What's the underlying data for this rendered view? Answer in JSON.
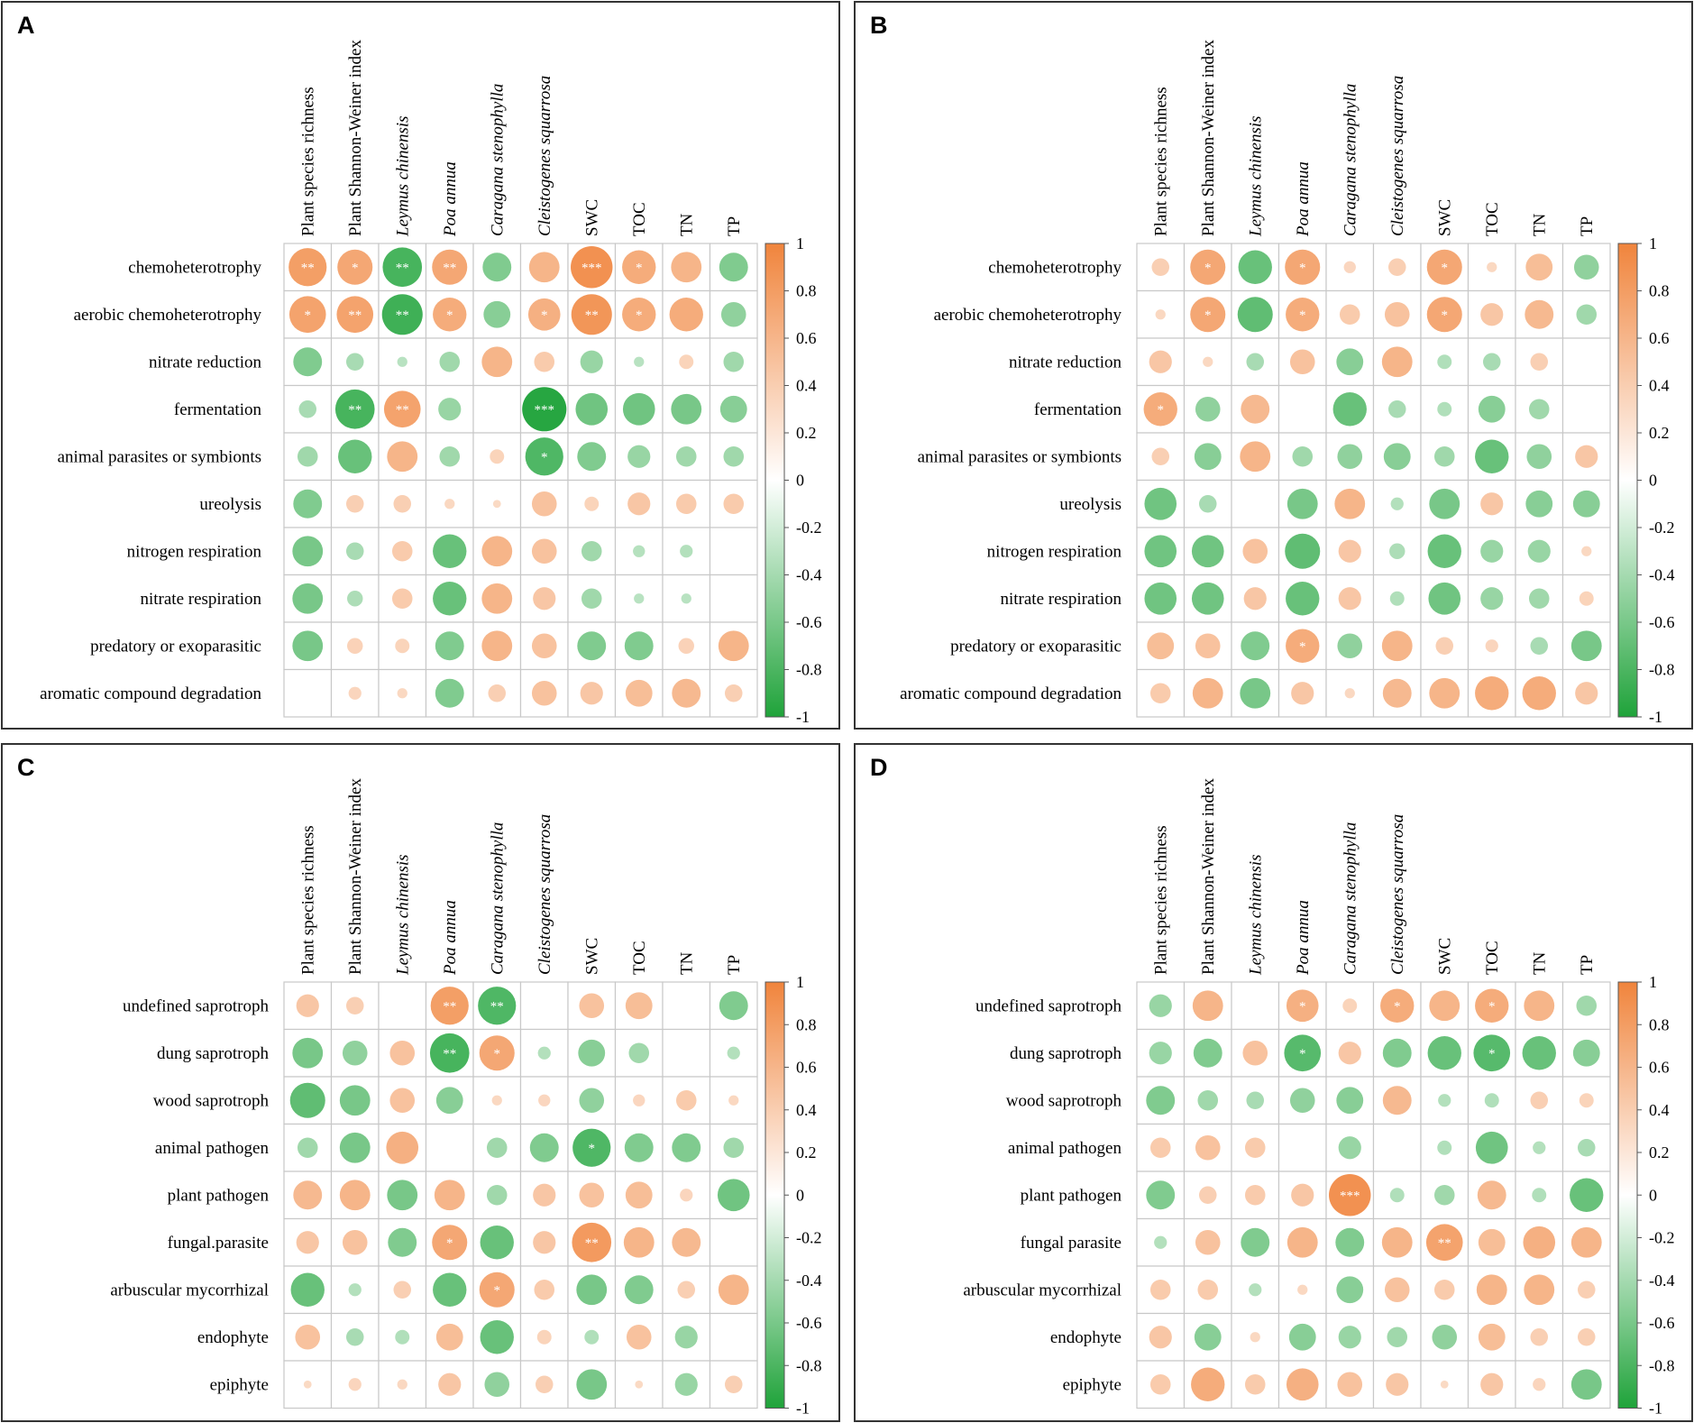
{
  "colors": {
    "positive": "#F0843C",
    "negative": "#1FA33A",
    "grid": "#C8C8C8",
    "border": "#333333"
  },
  "chart_data": [
    {
      "type": "heatmap",
      "panel": "A",
      "columns": [
        "Plant species richness",
        "Plant Shannon-Weiner index",
        "Leymus chinensis",
        "Poa annua",
        "Caragana stenophylla",
        "Cleistogenes squarrosa",
        "SWC",
        "TOC",
        "TN",
        "TP"
      ],
      "italic_columns": [
        2,
        3,
        4,
        5
      ],
      "rows": [
        "chemoheterotrophy",
        "aerobic chemoheterotrophy",
        "nitrate reduction",
        "fermentation",
        "animal parasites or symbionts",
        "ureolysis",
        "nitrogen respiration",
        "nitrate respiration",
        "predatory or exoparasitic",
        "aromatic compound degradation"
      ],
      "values": [
        [
          0.7,
          0.6,
          -0.75,
          0.6,
          -0.4,
          0.45,
          0.85,
          0.55,
          0.45,
          -0.4
        ],
        [
          0.65,
          0.65,
          -0.8,
          0.55,
          -0.35,
          0.5,
          0.8,
          0.55,
          0.55,
          -0.3
        ],
        [
          -0.4,
          -0.15,
          -0.05,
          -0.2,
          0.45,
          0.2,
          -0.25,
          -0.05,
          0.1,
          -0.2
        ],
        [
          -0.15,
          -0.75,
          0.65,
          -0.25,
          0.0,
          -0.95,
          -0.5,
          -0.5,
          -0.45,
          -0.35
        ],
        [
          -0.2,
          -0.55,
          0.45,
          -0.2,
          0.1,
          -0.7,
          -0.4,
          -0.25,
          -0.2,
          -0.2
        ],
        [
          -0.4,
          0.15,
          0.15,
          0.05,
          0.03,
          0.3,
          0.1,
          0.25,
          0.2,
          0.2
        ],
        [
          -0.45,
          -0.15,
          0.2,
          -0.55,
          0.45,
          0.3,
          -0.2,
          -0.07,
          -0.08,
          0.0
        ],
        [
          -0.45,
          -0.12,
          0.2,
          -0.55,
          0.45,
          0.25,
          -0.2,
          -0.05,
          -0.05,
          0.0
        ],
        [
          -0.45,
          0.12,
          0.1,
          -0.4,
          0.45,
          0.3,
          -0.4,
          -0.4,
          0.12,
          0.45
        ],
        [
          0.0,
          0.08,
          0.05,
          -0.4,
          0.15,
          0.3,
          0.25,
          0.35,
          0.4,
          0.15
        ]
      ],
      "significance": [
        [
          "**",
          "*",
          "**",
          "**",
          "",
          "",
          "***",
          "*",
          "",
          ""
        ],
        [
          "*",
          "**",
          "**",
          "*",
          "",
          "*",
          "**",
          "*",
          "",
          ""
        ],
        [
          "",
          "",
          "",
          "",
          "",
          "",
          "",
          "",
          "",
          ""
        ],
        [
          "",
          "**",
          "**",
          "",
          "",
          "***",
          "",
          "",
          "",
          ""
        ],
        [
          "",
          "",
          "",
          "",
          "",
          "*",
          "",
          "",
          "",
          ""
        ],
        [
          "",
          "",
          "",
          "",
          "",
          "",
          "",
          "",
          "",
          ""
        ],
        [
          "",
          "",
          "",
          "",
          "",
          "",
          "",
          "",
          "",
          ""
        ],
        [
          "",
          "",
          "",
          "",
          "",
          "",
          "",
          "",
          "",
          ""
        ],
        [
          "",
          "",
          "",
          "",
          "",
          "",
          "",
          "",
          "",
          ""
        ],
        [
          "",
          "",
          "",
          "",
          "",
          "",
          "",
          "",
          "",
          ""
        ]
      ],
      "colorbar_ticks": [
        "1",
        "0.8",
        "0.6",
        "0.4",
        "0.2",
        "0",
        "-0.2",
        "-0.4",
        "-0.6",
        "-0.8",
        "-1"
      ],
      "value_range": [
        -1,
        1
      ]
    },
    {
      "type": "heatmap",
      "panel": "B",
      "columns": [
        "Plant species richness",
        "Plant Shannon-Weiner index",
        "Leymus chinensis",
        "Poa annua",
        "Caragana stenophylla",
        "Cleistogenes squarrosa",
        "SWC",
        "TOC",
        "TN",
        "TP"
      ],
      "italic_columns": [
        2,
        3,
        4,
        5
      ],
      "rows": [
        "chemoheterotrophy",
        "aerobic chemoheterotrophy",
        "nitrate reduction",
        "fermentation",
        "animal parasites or symbionts",
        "ureolysis",
        "nitrogen respiration",
        "nitrate respiration",
        "predatory or exoparasitic",
        "aromatic compound degradation"
      ],
      "values": [
        [
          0.15,
          0.6,
          -0.55,
          0.6,
          0.07,
          0.15,
          0.6,
          0.05,
          0.35,
          -0.3
        ],
        [
          0.05,
          0.6,
          -0.6,
          0.55,
          0.2,
          0.3,
          0.6,
          0.25,
          0.4,
          -0.2
        ],
        [
          0.25,
          0.05,
          -0.15,
          0.3,
          -0.35,
          0.45,
          -0.1,
          -0.15,
          0.15,
          0.0
        ],
        [
          0.55,
          -0.3,
          0.4,
          0.0,
          -0.55,
          -0.15,
          -0.1,
          -0.35,
          -0.2,
          0.0
        ],
        [
          0.15,
          -0.35,
          0.45,
          -0.2,
          -0.3,
          -0.35,
          -0.2,
          -0.55,
          -0.3,
          0.25
        ],
        [
          -0.5,
          -0.15,
          0.0,
          -0.45,
          0.45,
          -0.08,
          -0.45,
          0.25,
          -0.35,
          -0.35
        ],
        [
          -0.5,
          -0.5,
          0.3,
          -0.6,
          0.25,
          -0.12,
          -0.55,
          -0.25,
          -0.25,
          0.05
        ],
        [
          -0.5,
          -0.5,
          0.25,
          -0.55,
          0.25,
          -0.1,
          -0.5,
          -0.25,
          -0.2,
          0.1
        ],
        [
          0.35,
          0.3,
          -0.4,
          0.55,
          -0.3,
          0.45,
          0.15,
          0.08,
          -0.15,
          -0.45
        ],
        [
          0.2,
          0.45,
          -0.45,
          0.25,
          0.05,
          0.4,
          0.45,
          0.55,
          0.55,
          0.25
        ]
      ],
      "significance": [
        [
          "",
          "*",
          "",
          "*",
          "",
          "",
          "*",
          "",
          "",
          ""
        ],
        [
          "",
          "*",
          "",
          "*",
          "",
          "",
          "*",
          "",
          "",
          ""
        ],
        [
          "",
          "",
          "",
          "",
          "",
          "",
          "",
          "",
          "",
          ""
        ],
        [
          "*",
          "",
          "",
          "",
          "",
          "",
          "",
          "",
          "",
          ""
        ],
        [
          "",
          "",
          "",
          "",
          "",
          "",
          "",
          "",
          "",
          ""
        ],
        [
          "",
          "",
          "",
          "",
          "",
          "",
          "",
          "",
          "",
          ""
        ],
        [
          "",
          "",
          "",
          "",
          "",
          "",
          "",
          "",
          "",
          ""
        ],
        [
          "",
          "",
          "",
          "",
          "",
          "",
          "",
          "",
          "",
          ""
        ],
        [
          "",
          "",
          "",
          "*",
          "",
          "",
          "",
          "",
          "",
          ""
        ],
        [
          "",
          "",
          "",
          "",
          "",
          "",
          "",
          "",
          "",
          ""
        ]
      ],
      "colorbar_ticks": [
        "1",
        "0.8",
        "0.6",
        "0.4",
        "0.2",
        "0",
        "-0.2",
        "-0.4",
        "-0.6",
        "-0.8",
        "-1"
      ],
      "value_range": [
        -1,
        1
      ]
    },
    {
      "type": "heatmap",
      "panel": "C",
      "columns": [
        "Plant species richness",
        "Plant Shannon-Weiner index",
        "Leymus chinensis",
        "Poa annua",
        "Caragana stenophylla",
        "Cleistogenes squarrosa",
        "SWC",
        "TOC",
        "TN",
        "TP"
      ],
      "italic_columns": [
        2,
        3,
        4,
        5
      ],
      "rows": [
        "undefined saprotroph",
        "dung saprotroph",
        "wood saprotroph",
        "animal pathogen",
        "plant pathogen",
        "fungal.parasite",
        "arbuscular mycorrhizal",
        "endophyte",
        "epiphyte"
      ],
      "values": [
        [
          0.25,
          0.15,
          0.0,
          0.7,
          -0.7,
          0.0,
          0.3,
          0.35,
          0.0,
          -0.4
        ],
        [
          -0.45,
          -0.3,
          0.3,
          -0.75,
          0.6,
          -0.08,
          -0.35,
          -0.2,
          0.0,
          -0.08
        ],
        [
          -0.6,
          -0.45,
          0.3,
          -0.35,
          0.05,
          0.07,
          -0.3,
          0.07,
          0.2,
          0.05
        ],
        [
          -0.2,
          -0.45,
          0.5,
          0.0,
          -0.2,
          -0.4,
          -0.7,
          -0.4,
          -0.4,
          -0.2
        ],
        [
          0.4,
          0.45,
          -0.45,
          0.45,
          -0.2,
          0.25,
          0.3,
          0.35,
          0.08,
          -0.5
        ],
        [
          0.25,
          0.3,
          -0.4,
          0.6,
          -0.55,
          0.25,
          0.75,
          0.45,
          0.4,
          0.0
        ],
        [
          -0.55,
          -0.08,
          0.15,
          -0.55,
          0.6,
          0.2,
          -0.45,
          -0.4,
          0.15,
          0.45
        ],
        [
          0.3,
          -0.15,
          -0.1,
          0.35,
          -0.55,
          0.1,
          -0.1,
          0.3,
          -0.25,
          0.0
        ],
        [
          0.03,
          0.08,
          0.05,
          0.25,
          -0.3,
          0.15,
          -0.45,
          0.03,
          -0.25,
          0.15
        ]
      ],
      "significance": [
        [
          "",
          "",
          "",
          "**",
          "**",
          "",
          "",
          "",
          "",
          ""
        ],
        [
          "",
          "",
          "",
          "**",
          "*",
          "",
          "",
          "",
          "",
          ""
        ],
        [
          "",
          "",
          "",
          "",
          "",
          "",
          "",
          "",
          "",
          ""
        ],
        [
          "",
          "",
          "",
          "",
          "",
          "",
          "*",
          "",
          "",
          ""
        ],
        [
          "",
          "",
          "",
          "",
          "",
          "",
          "",
          "",
          "",
          ""
        ],
        [
          "",
          "",
          "",
          "*",
          "",
          "",
          "**",
          "",
          "",
          ""
        ],
        [
          "",
          "",
          "",
          "",
          "*",
          "",
          "",
          "",
          "",
          ""
        ],
        [
          "",
          "",
          "",
          "",
          "",
          "",
          "",
          "",
          "",
          ""
        ],
        [
          "",
          "",
          "",
          "",
          "",
          "",
          "",
          "",
          "",
          ""
        ]
      ],
      "colorbar_ticks": [
        "1",
        "0.8",
        "0.6",
        "0.4",
        "0.2",
        "0",
        "-0.2",
        "-0.4",
        "-0.6",
        "-0.8",
        "-1"
      ],
      "value_range": [
        -1,
        1
      ]
    },
    {
      "type": "heatmap",
      "panel": "D",
      "columns": [
        "Plant species richness",
        "Plant Shannon-Weiner index",
        "Leymus chinensis",
        "Poa annua",
        "Caragana stenophylla",
        "Cleistogenes squarrosa",
        "SWC",
        "TOC",
        "TN",
        "TP"
      ],
      "italic_columns": [
        2,
        3,
        4,
        5
      ],
      "rows": [
        "undefined saprotroph",
        "dung saprotroph",
        "wood saprotroph",
        "animal pathogen",
        "plant pathogen",
        "fungal parasite",
        "arbuscular mycorrhizal",
        "endophyte",
        "epiphyte"
      ],
      "values": [
        [
          -0.25,
          0.45,
          0.0,
          0.5,
          0.1,
          0.55,
          0.45,
          0.55,
          0.45,
          -0.2
        ],
        [
          -0.25,
          -0.4,
          0.3,
          -0.65,
          0.25,
          -0.4,
          -0.55,
          -0.65,
          -0.55,
          -0.35
        ],
        [
          -0.4,
          -0.2,
          -0.15,
          -0.3,
          -0.35,
          0.4,
          -0.08,
          -0.1,
          0.15,
          0.1
        ],
        [
          0.2,
          0.3,
          0.2,
          0.0,
          -0.25,
          0.0,
          -0.1,
          -0.5,
          -0.08,
          -0.15
        ],
        [
          -0.4,
          0.15,
          0.2,
          0.25,
          0.85,
          -0.1,
          -0.2,
          0.4,
          -0.1,
          -0.55
        ],
        [
          -0.08,
          0.3,
          -0.4,
          0.45,
          -0.4,
          0.45,
          0.65,
          0.35,
          0.5,
          0.45
        ],
        [
          0.2,
          0.2,
          -0.08,
          0.05,
          -0.35,
          0.3,
          0.2,
          0.45,
          0.45,
          0.15
        ],
        [
          0.25,
          -0.35,
          0.05,
          -0.35,
          -0.25,
          -0.2,
          -0.3,
          0.35,
          0.15,
          0.15
        ],
        [
          0.2,
          0.55,
          0.2,
          0.5,
          0.3,
          0.25,
          0.03,
          0.25,
          0.08,
          -0.45
        ]
      ],
      "significance": [
        [
          "",
          "",
          "",
          "*",
          "",
          "*",
          "",
          "*",
          "",
          ""
        ],
        [
          "",
          "",
          "",
          "*",
          "",
          "",
          "",
          "*",
          "",
          ""
        ],
        [
          "",
          "",
          "",
          "",
          "",
          "",
          "",
          "",
          "",
          ""
        ],
        [
          "",
          "",
          "",
          "",
          "",
          "",
          "",
          "",
          "",
          ""
        ],
        [
          "",
          "",
          "",
          "",
          "***",
          "",
          "",
          "",
          "",
          ""
        ],
        [
          "",
          "",
          "",
          "",
          "",
          "",
          "**",
          "",
          "",
          ""
        ],
        [
          "",
          "",
          "",
          "",
          "",
          "",
          "",
          "",
          "",
          ""
        ],
        [
          "",
          "",
          "",
          "",
          "",
          "",
          "",
          "",
          "",
          ""
        ],
        [
          "",
          "",
          "",
          "",
          "",
          "",
          "",
          "",
          "",
          ""
        ]
      ],
      "colorbar_ticks": [
        "1",
        "0.8",
        "0.6",
        "0.4",
        "0.2",
        "0",
        "-0.2",
        "-0.4",
        "-0.6",
        "-0.8",
        "-1"
      ],
      "value_range": [
        -1,
        1
      ]
    }
  ]
}
